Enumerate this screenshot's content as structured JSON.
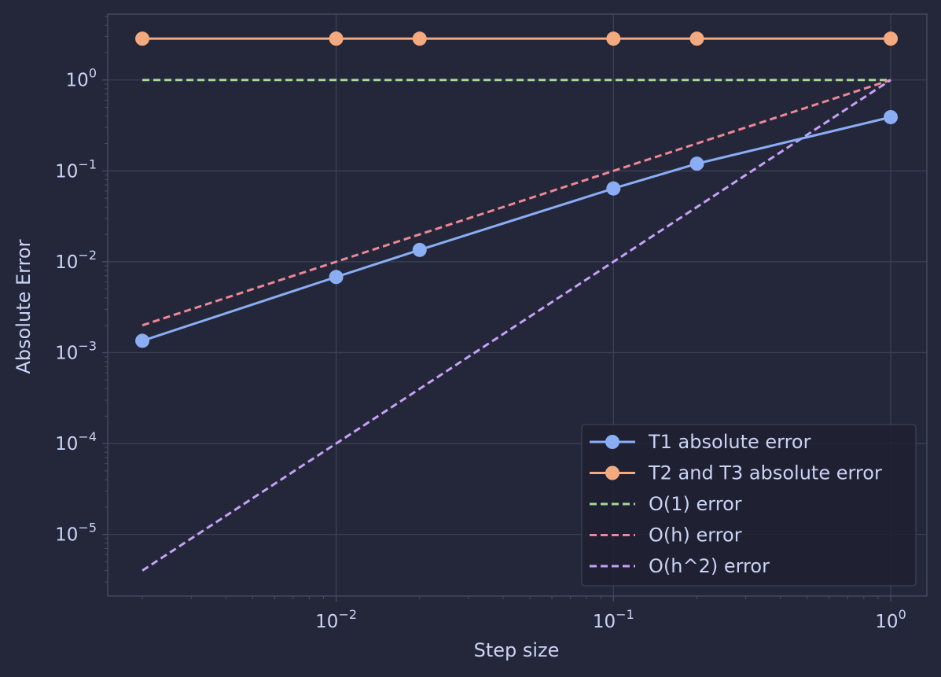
{
  "colors": {
    "background": "#24273a",
    "grid": "#3c4056",
    "axis": "#494d64",
    "text": "#cad3f5",
    "legend_bg": "#1e2030",
    "legend_border": "#3c4056"
  },
  "chart_data": {
    "type": "line",
    "xlabel": "Step size",
    "ylabel": "Absolute Error",
    "xscale": "log",
    "yscale": "log",
    "xlim": [
      0.0015,
      1.35
    ],
    "ylim": [
      2.1e-06,
      5.3
    ],
    "grid": true,
    "legend_position": "lower-right",
    "x_ticks": [
      {
        "value": 0.01,
        "base": "10",
        "exp": "−2"
      },
      {
        "value": 0.1,
        "base": "10",
        "exp": "−1"
      },
      {
        "value": 1,
        "base": "10",
        "exp": "0"
      }
    ],
    "y_ticks": [
      {
        "value": 1e-05,
        "base": "10",
        "exp": "−5"
      },
      {
        "value": 0.0001,
        "base": "10",
        "exp": "−4"
      },
      {
        "value": 0.001,
        "base": "10",
        "exp": "−3"
      },
      {
        "value": 0.01,
        "base": "10",
        "exp": "−2"
      },
      {
        "value": 0.1,
        "base": "10",
        "exp": "−1"
      },
      {
        "value": 1,
        "base": "10",
        "exp": "0"
      }
    ],
    "series": [
      {
        "name": "T1 absolute error",
        "color": "#8aadf4",
        "style": "solid",
        "marker": true,
        "x": [
          0.002,
          0.01,
          0.02,
          0.1,
          0.2,
          1
        ],
        "values": [
          0.00135,
          0.0068,
          0.0135,
          0.064,
          0.12,
          0.39
        ]
      },
      {
        "name": "T2 and T3 absolute error",
        "color": "#f5a97f",
        "style": "solid",
        "marker": true,
        "x": [
          0.002,
          0.01,
          0.02,
          0.1,
          0.2,
          1
        ],
        "values": [
          2.85,
          2.85,
          2.85,
          2.85,
          2.85,
          2.85
        ]
      },
      {
        "name": "O(1) error",
        "color": "#a6da95",
        "style": "dashed",
        "marker": false,
        "x": [
          0.002,
          1
        ],
        "values": [
          1,
          1
        ]
      },
      {
        "name": "O(h) error",
        "color": "#ed8796",
        "style": "dashed",
        "marker": false,
        "x": [
          0.002,
          1
        ],
        "values": [
          0.002,
          1
        ]
      },
      {
        "name": "O(h^2) error",
        "color": "#c6a0f6",
        "style": "dashed",
        "marker": false,
        "x": [
          0.002,
          1
        ],
        "values": [
          4e-06,
          1
        ]
      }
    ]
  }
}
